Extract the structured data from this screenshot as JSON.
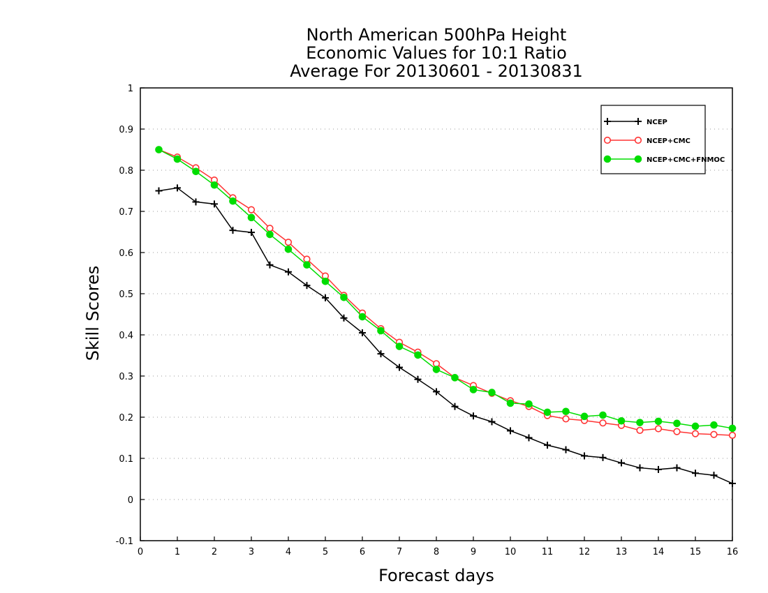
{
  "chart_data": {
    "type": "line",
    "title_lines": [
      "North American 500hPa Height",
      "Economic Values for 10:1 Ratio",
      "Average For 20130601 - 20130831"
    ],
    "xlabel": "Forecast days",
    "ylabel": "Skill Scores",
    "xlim": [
      0,
      16
    ],
    "ylim": [
      -0.1,
      1
    ],
    "x_ticks": [
      "0",
      "1",
      "2",
      "3",
      "4",
      "5",
      "6",
      "7",
      "8",
      "9",
      "10",
      "11",
      "12",
      "13",
      "14",
      "15",
      "16"
    ],
    "y_ticks": [
      "-0.1",
      "0",
      "0.1",
      "0.2",
      "0.3",
      "0.4",
      "0.5",
      "0.6",
      "0.7",
      "0.8",
      "0.9",
      "1"
    ],
    "grid": true,
    "legend_position": "top-right",
    "x": [
      0.5,
      1,
      1.5,
      2,
      2.5,
      3,
      3.5,
      4,
      4.5,
      5,
      5.5,
      6,
      6.5,
      7,
      7.5,
      8,
      8.5,
      9,
      9.5,
      10,
      10.5,
      11,
      11.5,
      12,
      12.5,
      13,
      13.5,
      14,
      14.5,
      15,
      15.5,
      16
    ],
    "series": [
      {
        "name": "NCEP",
        "color": "#000000",
        "marker": "plus",
        "values": [
          0.75,
          0.757,
          0.723,
          0.718,
          0.654,
          0.649,
          0.57,
          0.553,
          0.52,
          0.49,
          0.441,
          0.405,
          0.354,
          0.321,
          0.292,
          0.262,
          0.226,
          0.203,
          0.189,
          0.167,
          0.15,
          0.132,
          0.121,
          0.106,
          0.102,
          0.089,
          0.077,
          0.073,
          0.077,
          0.064,
          0.059,
          0.039
        ]
      },
      {
        "name": "NCEP+CMC",
        "color": "#ff3333",
        "marker": "open-circle",
        "values": [
          0.85,
          0.832,
          0.806,
          0.776,
          0.733,
          0.704,
          0.659,
          0.625,
          0.584,
          0.543,
          0.496,
          0.453,
          0.415,
          0.382,
          0.358,
          0.33,
          0.296,
          0.277,
          0.258,
          0.24,
          0.226,
          0.204,
          0.196,
          0.192,
          0.186,
          0.18,
          0.168,
          0.172,
          0.165,
          0.16,
          0.158,
          0.156
        ]
      },
      {
        "name": "NCEP+CMC+FNMOC",
        "color": "#00dd00",
        "marker": "filled-circle",
        "values": [
          0.85,
          0.827,
          0.797,
          0.764,
          0.725,
          0.685,
          0.644,
          0.608,
          0.57,
          0.53,
          0.491,
          0.444,
          0.41,
          0.372,
          0.351,
          0.316,
          0.296,
          0.267,
          0.26,
          0.234,
          0.232,
          0.212,
          0.214,
          0.202,
          0.205,
          0.191,
          0.187,
          0.19,
          0.185,
          0.178,
          0.181,
          0.173
        ]
      }
    ]
  }
}
